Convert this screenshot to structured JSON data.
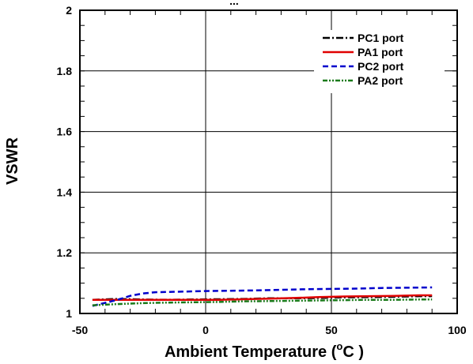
{
  "chart_data": {
    "type": "line",
    "title_fragment": "...",
    "xlabel_prefix": "Ambient Temperature (",
    "xlabel_superscript": "o",
    "xlabel_unit": "C )",
    "ylabel": "VSWR",
    "xlim": [
      -50,
      100
    ],
    "ylim": [
      1,
      2
    ],
    "x_ticks": [
      "-50",
      "0",
      "50",
      "100"
    ],
    "y_ticks": [
      "1",
      "1.2",
      "1.4",
      "1.6",
      "1.8",
      "2"
    ],
    "grid": "major lines at labeled ticks",
    "legend_position": "top-right",
    "series": [
      {
        "name": "PC1 port",
        "color": "#000000",
        "dash": "dash-dot",
        "points": [
          [
            -45,
            1.045
          ],
          [
            -35,
            1.048
          ],
          [
            -25,
            1.046
          ],
          [
            -15,
            1.045
          ],
          [
            -5,
            1.046
          ],
          [
            5,
            1.047
          ],
          [
            15,
            1.048
          ],
          [
            25,
            1.05
          ],
          [
            35,
            1.05
          ],
          [
            45,
            1.051
          ],
          [
            55,
            1.053
          ],
          [
            65,
            1.054
          ],
          [
            75,
            1.055
          ],
          [
            85,
            1.057
          ],
          [
            90,
            1.057
          ]
        ]
      },
      {
        "name": "PA1 port",
        "color": "#e00000",
        "dash": "solid",
        "points": [
          [
            -45,
            1.045
          ],
          [
            -35,
            1.045
          ],
          [
            -25,
            1.045
          ],
          [
            -15,
            1.045
          ],
          [
            -5,
            1.045
          ],
          [
            5,
            1.045
          ],
          [
            15,
            1.047
          ],
          [
            25,
            1.049
          ],
          [
            35,
            1.051
          ],
          [
            45,
            1.054
          ],
          [
            55,
            1.056
          ],
          [
            65,
            1.057
          ],
          [
            75,
            1.058
          ],
          [
            85,
            1.06
          ],
          [
            90,
            1.06
          ]
        ]
      },
      {
        "name": "PC2 port",
        "color": "#0000cc",
        "dash": "dashed",
        "points": [
          [
            -45,
            1.025
          ],
          [
            -40,
            1.035
          ],
          [
            -35,
            1.045
          ],
          [
            -30,
            1.058
          ],
          [
            -25,
            1.066
          ],
          [
            -20,
            1.07
          ],
          [
            -10,
            1.072
          ],
          [
            0,
            1.074
          ],
          [
            10,
            1.075
          ],
          [
            20,
            1.076
          ],
          [
            30,
            1.078
          ],
          [
            40,
            1.08
          ],
          [
            50,
            1.081
          ],
          [
            60,
            1.082
          ],
          [
            70,
            1.084
          ],
          [
            80,
            1.085
          ],
          [
            90,
            1.086
          ]
        ]
      },
      {
        "name": "PA2 port",
        "color": "#1a7a1a",
        "dash": "dash-dot-dot",
        "points": [
          [
            -45,
            1.027
          ],
          [
            -35,
            1.031
          ],
          [
            -25,
            1.034
          ],
          [
            -15,
            1.036
          ],
          [
            -5,
            1.037
          ],
          [
            5,
            1.038
          ],
          [
            15,
            1.04
          ],
          [
            25,
            1.041
          ],
          [
            35,
            1.042
          ],
          [
            45,
            1.043
          ],
          [
            55,
            1.044
          ],
          [
            65,
            1.045
          ],
          [
            75,
            1.045
          ],
          [
            85,
            1.046
          ],
          [
            90,
            1.046
          ]
        ]
      }
    ]
  }
}
